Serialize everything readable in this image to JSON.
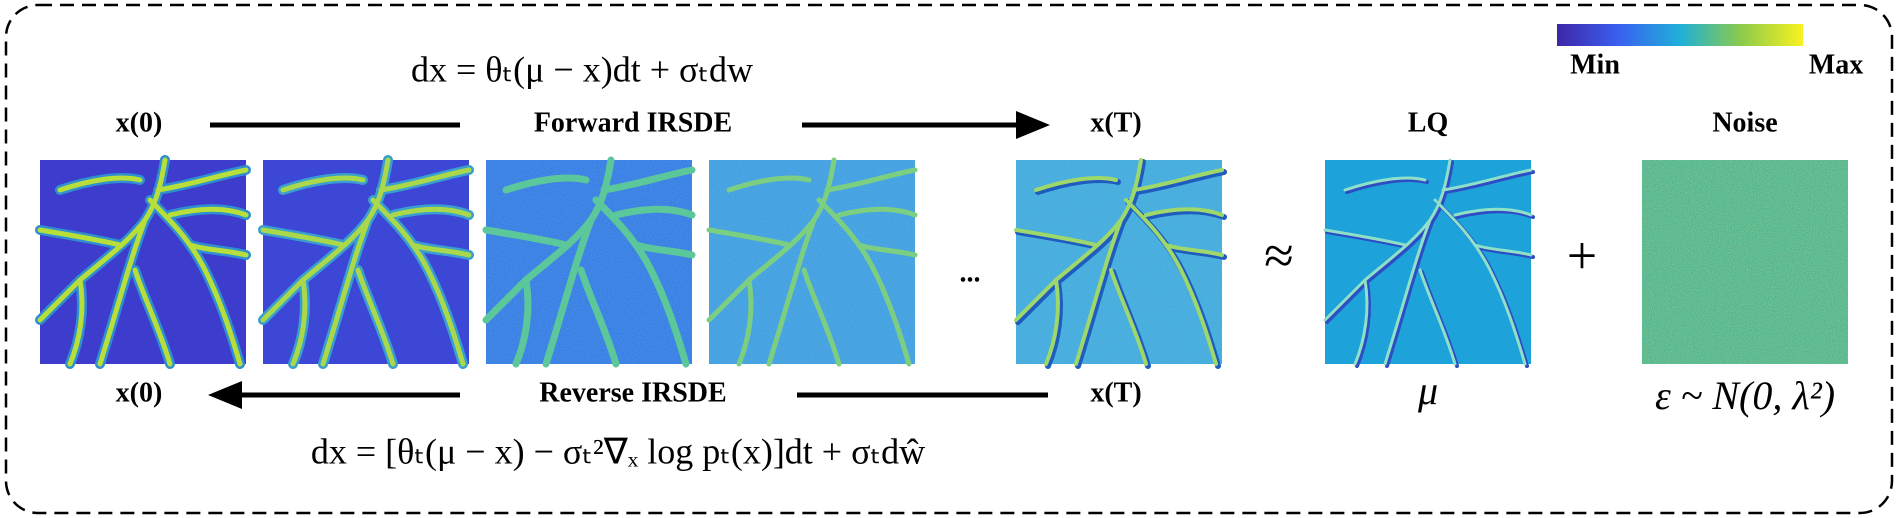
{
  "colorbar": {
    "min": "Min",
    "max": "Max"
  },
  "forward": {
    "equation": "dx = θₜ(μ − x)dt + σₜdw",
    "start": "x(0)",
    "label": "Forward IRSDE",
    "end": "x(T)"
  },
  "reverse": {
    "equation": "dx = [θₜ(μ − x) − σₜ²∇ₓ log pₜ(x)]dt + σₜdŵ",
    "start": "x(T)",
    "label": "Reverse IRSDE",
    "end": "x(0)"
  },
  "ellipsis": "...",
  "approx": "≈",
  "plus": "+",
  "lq": {
    "label": "LQ",
    "symbol": "μ"
  },
  "noise": {
    "label": "Noise",
    "symbol": "ε ~ N(0, λ²)"
  }
}
